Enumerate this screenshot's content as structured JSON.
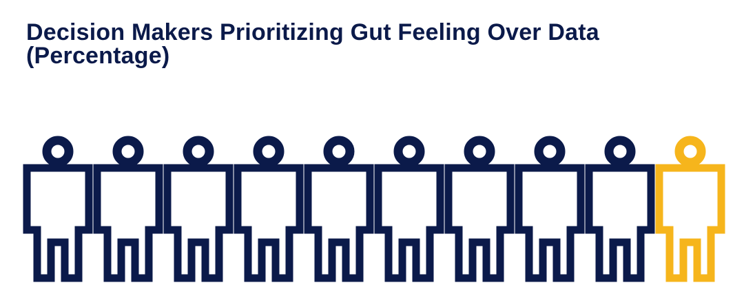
{
  "chart_data": {
    "type": "pictogram",
    "title_lines": [
      "Decision Makers Prioritizing Gut Feeling Over Data",
      "(Percentage)"
    ],
    "total_icons": 10,
    "highlighted_icons": 1,
    "highlighted_fraction": 0.1,
    "icon": "person-icon",
    "colors": {
      "base": "#0b1a4a",
      "highlight": "#f6b51c"
    }
  }
}
